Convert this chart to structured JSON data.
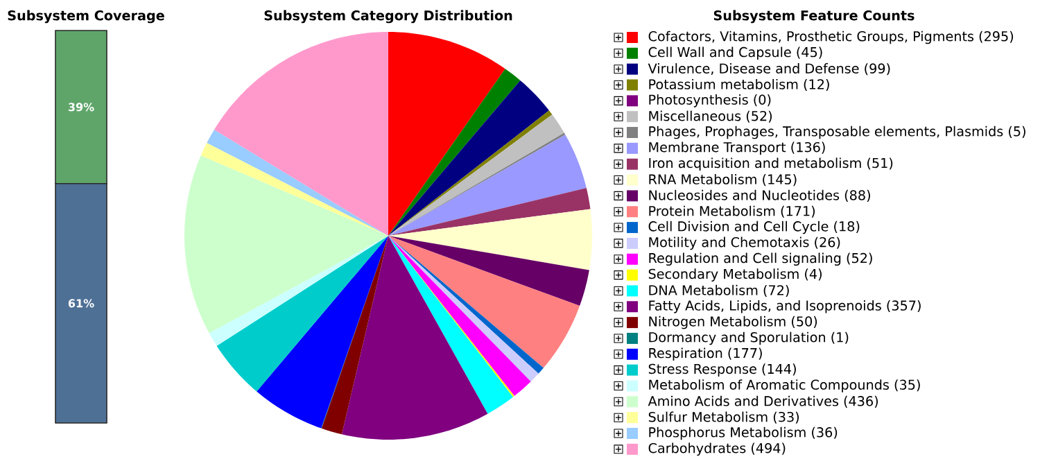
{
  "chart_data": [
    {
      "type": "bar",
      "title": "Subsystem Coverage",
      "categories": [
        null
      ],
      "stacked": true,
      "series": [
        {
          "color": "#4e7095",
          "values": [
            61
          ],
          "value_labels": [
            "61%"
          ]
        },
        {
          "color": "#5fa56a",
          "values": [
            39
          ],
          "value_labels": [
            "39%"
          ]
        }
      ]
    },
    {
      "type": "pie",
      "title": "Subsystem Category Distribution",
      "legend_title": "Subsystem Feature Counts",
      "legend": "right",
      "categories": [
        "Cofactors, Vitamins, Prosthetic Groups, Pigments (295)",
        "Cell Wall and Capsule (45)",
        "Virulence, Disease and Defense (99)",
        "Potassium metabolism (12)",
        "Photosynthesis (0)",
        "Miscellaneous (52)",
        "Phages, Prophages, Transposable elements, Plasmids (5)",
        "Membrane Transport (136)",
        "Iron acquisition and metabolism (51)",
        "RNA Metabolism (145)",
        "Nucleosides and Nucleotides (88)",
        "Protein Metabolism (171)",
        "Cell Division and Cell Cycle (18)",
        "Motility and Chemotaxis (26)",
        "Regulation and Cell signaling (52)",
        "Secondary Metabolism (4)",
        "DNA Metabolism (72)",
        "Fatty Acids, Lipids, and Isoprenoids (357)",
        "Nitrogen Metabolism (50)",
        "Dormancy and Sporulation (1)",
        "Respiration (177)",
        "Stress Response (144)",
        "Metabolism of Aromatic Compounds (35)",
        "Amino Acids and Derivatives (436)",
        "Sulfur Metabolism (33)",
        "Phosphorus Metabolism (36)",
        "Carbohydrates (494)"
      ],
      "values": [
        295,
        45,
        99,
        12,
        0,
        52,
        5,
        136,
        51,
        145,
        88,
        171,
        18,
        26,
        52,
        4,
        72,
        357,
        50,
        1,
        177,
        144,
        35,
        436,
        33,
        36,
        494
      ],
      "colors": [
        "#ff0000",
        "#008000",
        "#000080",
        "#808000",
        "#800080",
        "#c0c0c0",
        "#808080",
        "#9999ff",
        "#993366",
        "#ffffcc",
        "#660066",
        "#ff8080",
        "#0066cc",
        "#ccccff",
        "#ff00ff",
        "#ffff00",
        "#00ffff",
        "#800080",
        "#800000",
        "#008080",
        "#0000ff",
        "#00cccc",
        "#ccffff",
        "#ccffcc",
        "#ffff99",
        "#99ccff",
        "#ff99cc"
      ]
    }
  ]
}
